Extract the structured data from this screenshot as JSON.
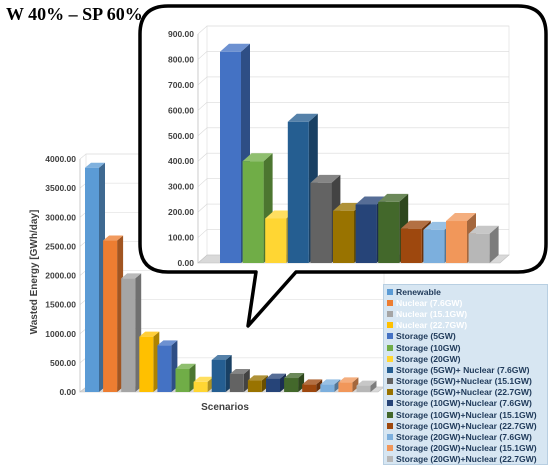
{
  "title": "W 40% – SP 60%",
  "chart_data": [
    {
      "type": "bar",
      "title": "",
      "xlabel": "Scenarios",
      "ylabel": "Wasted Energy [GWh/day]",
      "ylim": [
        0,
        4000
      ],
      "yticks": [
        "0.00",
        "500.00",
        "1000.00",
        "1500.00",
        "2000.00",
        "2500.00",
        "3000.00",
        "3500.00",
        "4000.00"
      ],
      "categories": [
        "Renewable",
        "Nuclear (7.6GW)",
        "Nuclear  (15.1GW)",
        "Nuclear  (22.7GW)",
        "Storage (5GW)",
        "Storage (10GW)",
        "Storage (20GW)",
        "Storage (5GW)+ Nuclear  (7.6GW)",
        "Storage (5GW)+Nuclear (15.1GW)",
        "Storage (5GW)+Nuclear (22.7GW)",
        "Storage (10GW)+Nuclear (7.6GW)",
        "Storage (10GW)+Nuclear (15.1GW)",
        "Storage (10GW)+Nuclear (22.7GW)",
        "Storage (20GW)+Nuclear (7.6GW)",
        "Storage (20GW)+Nuclear (15.1GW)",
        "Storage (20GW)+Nuclear (22.7GW)"
      ],
      "values": [
        3850,
        2600,
        1950,
        950,
        800,
        400,
        175,
        550,
        310,
        200,
        230,
        240,
        130,
        130,
        165,
        110
      ],
      "colors": [
        "#5b9bd5",
        "#ed7d31",
        "#a5a5a5",
        "#ffc000",
        "#4472c4",
        "#70ad47",
        "#ffd633",
        "#255e91",
        "#636363",
        "#997300",
        "#264478",
        "#43682b",
        "#9e480e",
        "#7cafdd",
        "#f1975a",
        "#b7b7b7"
      ],
      "legend": "bottom-right",
      "grid": true
    },
    {
      "type": "bar",
      "title": "",
      "xlabel": "",
      "ylabel": "",
      "ylim": [
        0,
        900
      ],
      "yticks": [
        "0.00",
        "100.00",
        "200.00",
        "300.00",
        "400.00",
        "500.00",
        "600.00",
        "700.00",
        "800.00",
        "900.00"
      ],
      "categories": [
        "Storage (5GW)",
        "Storage (10GW)",
        "Storage (20GW)",
        "Storage (5GW)+ Nuclear  (7.6GW)",
        "Storage (5GW)+Nuclear (15.1GW)",
        "Storage (5GW)+Nuclear (22.7GW)",
        "Storage (10GW)+Nuclear (7.6GW)",
        "Storage (10GW)+Nuclear (15.1GW)",
        "Storage (10GW)+Nuclear (22.7GW)",
        "Storage (20GW)+Nuclear (7.6GW)",
        "Storage (20GW)+Nuclear (15.1GW)",
        "Storage (20GW)+Nuclear (22.7GW)"
      ],
      "values": [
        830,
        400,
        175,
        555,
        315,
        205,
        230,
        240,
        135,
        130,
        165,
        115
      ],
      "colors": [
        "#4472c4",
        "#70ad47",
        "#ffd633",
        "#255e91",
        "#636363",
        "#997300",
        "#264478",
        "#43682b",
        "#9e480e",
        "#7cafdd",
        "#f1975a",
        "#b7b7b7"
      ],
      "grid": true
    }
  ]
}
